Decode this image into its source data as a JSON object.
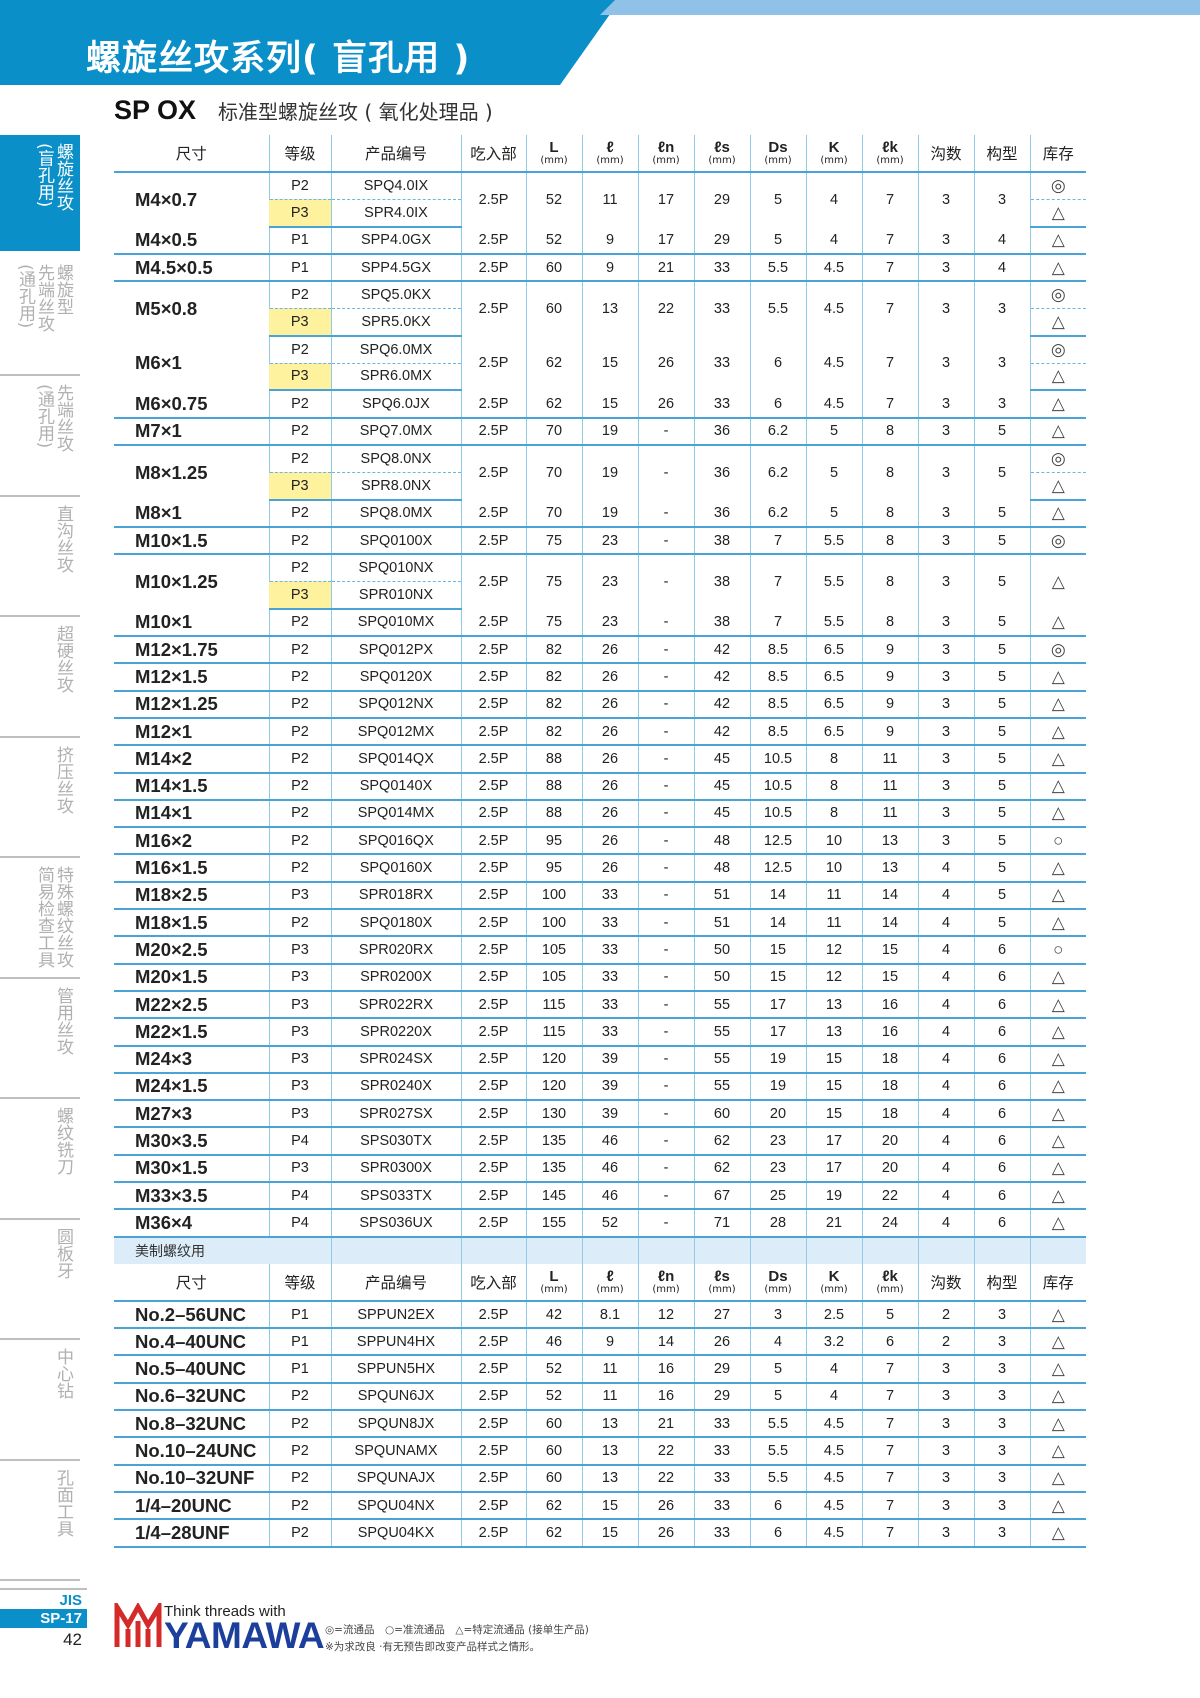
{
  "header": {
    "title": "螺旋丝攻系列( 盲孔用 )",
    "product_code": "SP OX",
    "product_desc": "标准型螺旋丝攻 ( 氧化处理品 )"
  },
  "colors": {
    "brand_blue": "#0a8fc9",
    "strip_blue": "#8fc2e6",
    "p3_highlight": "#fff29e",
    "section_bg": "#dcedf9",
    "logo_red": "#d42a2a",
    "logo_blue": "#1d3f9c"
  },
  "sidebar": {
    "items": [
      {
        "label": "螺旋丝攻\n(盲孔用)",
        "active": true
      },
      {
        "label": "螺旋型\n先端丝攻\n(通孔用)",
        "active": false
      },
      {
        "label": "先端丝攻\n(通孔用)",
        "active": false
      },
      {
        "label": "直沟丝攻",
        "active": false
      },
      {
        "label": "超硬丝攻",
        "active": false
      },
      {
        "label": "挤压丝攻",
        "active": false
      },
      {
        "label": "特殊螺纹丝攻\n简易检查工具",
        "active": false
      },
      {
        "label": "管用丝攻",
        "active": false
      },
      {
        "label": "螺纹铣刀",
        "active": false
      },
      {
        "label": "圆板牙",
        "active": false
      },
      {
        "label": "中心钻",
        "active": false
      },
      {
        "label": "孔面工具",
        "active": false
      }
    ]
  },
  "table": {
    "columns": [
      {
        "label": "尺寸"
      },
      {
        "label": "等级"
      },
      {
        "label": "产品编号"
      },
      {
        "label": "吃入部"
      },
      {
        "label": "L",
        "unit": "(mm)"
      },
      {
        "label": "ℓ",
        "unit": "(mm)"
      },
      {
        "label": "ℓn",
        "unit": "(mm)"
      },
      {
        "label": "ℓs",
        "unit": "(mm)"
      },
      {
        "label": "Ds",
        "unit": "(mm)"
      },
      {
        "label": "K",
        "unit": "(mm)"
      },
      {
        "label": "ℓk",
        "unit": "(mm)"
      },
      {
        "label": "沟数"
      },
      {
        "label": "构型"
      },
      {
        "label": "库存"
      }
    ],
    "metric_rows": [
      {
        "size": "M4×0.7",
        "variants": [
          {
            "grade": "P2",
            "code": "SPQ4.0IX",
            "stock": "◎"
          },
          {
            "grade": "P3",
            "code": "SPR4.0IX",
            "stock": "△"
          }
        ],
        "values": [
          "2.5P",
          "52",
          "11",
          "17",
          "29",
          "5",
          "4",
          "7",
          "3",
          "3"
        ]
      },
      {
        "size": "M4×0.5",
        "variants": [
          {
            "grade": "P1",
            "code": "SPP4.0GX",
            "stock": "△"
          }
        ],
        "values": [
          "2.5P",
          "52",
          "9",
          "17",
          "29",
          "5",
          "4",
          "7",
          "3",
          "4"
        ]
      },
      {
        "size": "M4.5×0.5",
        "variants": [
          {
            "grade": "P1",
            "code": "SPP4.5GX",
            "stock": "△"
          }
        ],
        "values": [
          "2.5P",
          "60",
          "9",
          "21",
          "33",
          "5.5",
          "4.5",
          "7",
          "3",
          "4"
        ]
      },
      {
        "size": "M5×0.8",
        "variants": [
          {
            "grade": "P2",
            "code": "SPQ5.0KX",
            "stock": "◎"
          },
          {
            "grade": "P3",
            "code": "SPR5.0KX",
            "stock": "△"
          }
        ],
        "values": [
          "2.5P",
          "60",
          "13",
          "22",
          "33",
          "5.5",
          "4.5",
          "7",
          "3",
          "3"
        ]
      },
      {
        "size": "M6×1",
        "variants": [
          {
            "grade": "P2",
            "code": "SPQ6.0MX",
            "stock": "◎"
          },
          {
            "grade": "P3",
            "code": "SPR6.0MX",
            "stock": "△"
          }
        ],
        "values": [
          "2.5P",
          "62",
          "15",
          "26",
          "33",
          "6",
          "4.5",
          "7",
          "3",
          "3"
        ]
      },
      {
        "size": "M6×0.75",
        "variants": [
          {
            "grade": "P2",
            "code": "SPQ6.0JX",
            "stock": "△"
          }
        ],
        "values": [
          "2.5P",
          "62",
          "15",
          "26",
          "33",
          "6",
          "4.5",
          "7",
          "3",
          "3"
        ]
      },
      {
        "size": "M7×1",
        "variants": [
          {
            "grade": "P2",
            "code": "SPQ7.0MX",
            "stock": "△"
          }
        ],
        "values": [
          "2.5P",
          "70",
          "19",
          "-",
          "36",
          "6.2",
          "5",
          "8",
          "3",
          "5"
        ]
      },
      {
        "size": "M8×1.25",
        "variants": [
          {
            "grade": "P2",
            "code": "SPQ8.0NX",
            "stock": "◎"
          },
          {
            "grade": "P3",
            "code": "SPR8.0NX",
            "stock": "△"
          }
        ],
        "values": [
          "2.5P",
          "70",
          "19",
          "-",
          "36",
          "6.2",
          "5",
          "8",
          "3",
          "5"
        ]
      },
      {
        "size": "M8×1",
        "variants": [
          {
            "grade": "P2",
            "code": "SPQ8.0MX",
            "stock": "△"
          }
        ],
        "values": [
          "2.5P",
          "70",
          "19",
          "-",
          "36",
          "6.2",
          "5",
          "8",
          "3",
          "5"
        ]
      },
      {
        "size": "M10×1.5",
        "variants": [
          {
            "grade": "P2",
            "code": "SPQ0100X",
            "stock": "◎"
          }
        ],
        "values": [
          "2.5P",
          "75",
          "23",
          "-",
          "38",
          "7",
          "5.5",
          "8",
          "3",
          "5"
        ]
      },
      {
        "size": "M10×1.25",
        "variants": [
          {
            "grade": "P2",
            "code": "SPQ010NX",
            "stock": "△"
          },
          {
            "grade": "P3",
            "code": "SPR010NX",
            "stock": ""
          }
        ],
        "values": [
          "2.5P",
          "75",
          "23",
          "-",
          "38",
          "7",
          "5.5",
          "8",
          "3",
          "5"
        ]
      },
      {
        "size": "M10×1",
        "variants": [
          {
            "grade": "P2",
            "code": "SPQ010MX",
            "stock": "△"
          }
        ],
        "values": [
          "2.5P",
          "75",
          "23",
          "-",
          "38",
          "7",
          "5.5",
          "8",
          "3",
          "5"
        ]
      },
      {
        "size": "M12×1.75",
        "variants": [
          {
            "grade": "P2",
            "code": "SPQ012PX",
            "stock": "◎"
          }
        ],
        "values": [
          "2.5P",
          "82",
          "26",
          "-",
          "42",
          "8.5",
          "6.5",
          "9",
          "3",
          "5"
        ]
      },
      {
        "size": "M12×1.5",
        "variants": [
          {
            "grade": "P2",
            "code": "SPQ0120X",
            "stock": "△"
          }
        ],
        "values": [
          "2.5P",
          "82",
          "26",
          "-",
          "42",
          "8.5",
          "6.5",
          "9",
          "3",
          "5"
        ]
      },
      {
        "size": "M12×1.25",
        "variants": [
          {
            "grade": "P2",
            "code": "SPQ012NX",
            "stock": "△"
          }
        ],
        "values": [
          "2.5P",
          "82",
          "26",
          "-",
          "42",
          "8.5",
          "6.5",
          "9",
          "3",
          "5"
        ]
      },
      {
        "size": "M12×1",
        "variants": [
          {
            "grade": "P2",
            "code": "SPQ012MX",
            "stock": "△"
          }
        ],
        "values": [
          "2.5P",
          "82",
          "26",
          "-",
          "42",
          "8.5",
          "6.5",
          "9",
          "3",
          "5"
        ]
      },
      {
        "size": "M14×2",
        "variants": [
          {
            "grade": "P2",
            "code": "SPQ014QX",
            "stock": "△"
          }
        ],
        "values": [
          "2.5P",
          "88",
          "26",
          "-",
          "45",
          "10.5",
          "8",
          "11",
          "3",
          "5"
        ]
      },
      {
        "size": "M14×1.5",
        "variants": [
          {
            "grade": "P2",
            "code": "SPQ0140X",
            "stock": "△"
          }
        ],
        "values": [
          "2.5P",
          "88",
          "26",
          "-",
          "45",
          "10.5",
          "8",
          "11",
          "3",
          "5"
        ]
      },
      {
        "size": "M14×1",
        "variants": [
          {
            "grade": "P2",
            "code": "SPQ014MX",
            "stock": "△"
          }
        ],
        "values": [
          "2.5P",
          "88",
          "26",
          "-",
          "45",
          "10.5",
          "8",
          "11",
          "3",
          "5"
        ]
      },
      {
        "size": "M16×2",
        "variants": [
          {
            "grade": "P2",
            "code": "SPQ016QX",
            "stock": "○"
          }
        ],
        "values": [
          "2.5P",
          "95",
          "26",
          "-",
          "48",
          "12.5",
          "10",
          "13",
          "3",
          "5"
        ]
      },
      {
        "size": "M16×1.5",
        "variants": [
          {
            "grade": "P2",
            "code": "SPQ0160X",
            "stock": "△"
          }
        ],
        "values": [
          "2.5P",
          "95",
          "26",
          "-",
          "48",
          "12.5",
          "10",
          "13",
          "4",
          "5"
        ]
      },
      {
        "size": "M18×2.5",
        "variants": [
          {
            "grade": "P3",
            "code": "SPR018RX",
            "stock": "△"
          }
        ],
        "values": [
          "2.5P",
          "100",
          "33",
          "-",
          "51",
          "14",
          "11",
          "14",
          "4",
          "5"
        ]
      },
      {
        "size": "M18×1.5",
        "variants": [
          {
            "grade": "P2",
            "code": "SPQ0180X",
            "stock": "△"
          }
        ],
        "values": [
          "2.5P",
          "100",
          "33",
          "-",
          "51",
          "14",
          "11",
          "14",
          "4",
          "5"
        ]
      },
      {
        "size": "M20×2.5",
        "variants": [
          {
            "grade": "P3",
            "code": "SPR020RX",
            "stock": "○"
          }
        ],
        "values": [
          "2.5P",
          "105",
          "33",
          "-",
          "50",
          "15",
          "12",
          "15",
          "4",
          "6"
        ]
      },
      {
        "size": "M20×1.5",
        "variants": [
          {
            "grade": "P3",
            "code": "SPR0200X",
            "stock": "△"
          }
        ],
        "values": [
          "2.5P",
          "105",
          "33",
          "-",
          "50",
          "15",
          "12",
          "15",
          "4",
          "6"
        ]
      },
      {
        "size": "M22×2.5",
        "variants": [
          {
            "grade": "P3",
            "code": "SPR022RX",
            "stock": "△"
          }
        ],
        "values": [
          "2.5P",
          "115",
          "33",
          "-",
          "55",
          "17",
          "13",
          "16",
          "4",
          "6"
        ]
      },
      {
        "size": "M22×1.5",
        "variants": [
          {
            "grade": "P3",
            "code": "SPR0220X",
            "stock": "△"
          }
        ],
        "values": [
          "2.5P",
          "115",
          "33",
          "-",
          "55",
          "17",
          "13",
          "16",
          "4",
          "6"
        ]
      },
      {
        "size": "M24×3",
        "variants": [
          {
            "grade": "P3",
            "code": "SPR024SX",
            "stock": "△"
          }
        ],
        "values": [
          "2.5P",
          "120",
          "39",
          "-",
          "55",
          "19",
          "15",
          "18",
          "4",
          "6"
        ]
      },
      {
        "size": "M24×1.5",
        "variants": [
          {
            "grade": "P3",
            "code": "SPR0240X",
            "stock": "△"
          }
        ],
        "values": [
          "2.5P",
          "120",
          "39",
          "-",
          "55",
          "19",
          "15",
          "18",
          "4",
          "6"
        ]
      },
      {
        "size": "M27×3",
        "variants": [
          {
            "grade": "P3",
            "code": "SPR027SX",
            "stock": "△"
          }
        ],
        "values": [
          "2.5P",
          "130",
          "39",
          "-",
          "60",
          "20",
          "15",
          "18",
          "4",
          "6"
        ]
      },
      {
        "size": "M30×3.5",
        "variants": [
          {
            "grade": "P4",
            "code": "SPS030TX",
            "stock": "△"
          }
        ],
        "values": [
          "2.5P",
          "135",
          "46",
          "-",
          "62",
          "23",
          "17",
          "20",
          "4",
          "6"
        ]
      },
      {
        "size": "M30×1.5",
        "variants": [
          {
            "grade": "P3",
            "code": "SPR0300X",
            "stock": "△"
          }
        ],
        "values": [
          "2.5P",
          "135",
          "46",
          "-",
          "62",
          "23",
          "17",
          "20",
          "4",
          "6"
        ]
      },
      {
        "size": "M33×3.5",
        "variants": [
          {
            "grade": "P4",
            "code": "SPS033TX",
            "stock": "△"
          }
        ],
        "values": [
          "2.5P",
          "145",
          "46",
          "-",
          "67",
          "25",
          "19",
          "22",
          "4",
          "6"
        ]
      },
      {
        "size": "M36×4",
        "variants": [
          {
            "grade": "P4",
            "code": "SPS036UX",
            "stock": "△"
          }
        ],
        "values": [
          "2.5P",
          "155",
          "52",
          "-",
          "71",
          "28",
          "21",
          "24",
          "4",
          "6"
        ]
      }
    ],
    "section_label": "美制螺纹用",
    "unified_rows": [
      {
        "size": "No.2–56UNC",
        "variants": [
          {
            "grade": "P1",
            "code": "SPPUN2EX",
            "stock": "△"
          }
        ],
        "values": [
          "2.5P",
          "42",
          "8.1",
          "12",
          "27",
          "3",
          "2.5",
          "5",
          "2",
          "3"
        ]
      },
      {
        "size": "No.4–40UNC",
        "variants": [
          {
            "grade": "P1",
            "code": "SPPUN4HX",
            "stock": "△"
          }
        ],
        "values": [
          "2.5P",
          "46",
          "9",
          "14",
          "26",
          "4",
          "3.2",
          "6",
          "2",
          "3"
        ]
      },
      {
        "size": "No.5–40UNC",
        "variants": [
          {
            "grade": "P1",
            "code": "SPPUN5HX",
            "stock": "△"
          }
        ],
        "values": [
          "2.5P",
          "52",
          "11",
          "16",
          "29",
          "5",
          "4",
          "7",
          "3",
          "3"
        ]
      },
      {
        "size": "No.6–32UNC",
        "variants": [
          {
            "grade": "P2",
            "code": "SPQUN6JX",
            "stock": "△"
          }
        ],
        "values": [
          "2.5P",
          "52",
          "11",
          "16",
          "29",
          "5",
          "4",
          "7",
          "3",
          "3"
        ]
      },
      {
        "size": "No.8–32UNC",
        "variants": [
          {
            "grade": "P2",
            "code": "SPQUN8JX",
            "stock": "△"
          }
        ],
        "values": [
          "2.5P",
          "60",
          "13",
          "21",
          "33",
          "5.5",
          "4.5",
          "7",
          "3",
          "3"
        ]
      },
      {
        "size": "No.10–24UNC",
        "variants": [
          {
            "grade": "P2",
            "code": "SPQUNAMX",
            "stock": "△"
          }
        ],
        "values": [
          "2.5P",
          "60",
          "13",
          "22",
          "33",
          "5.5",
          "4.5",
          "7",
          "3",
          "3"
        ]
      },
      {
        "size": "No.10–32UNF",
        "variants": [
          {
            "grade": "P2",
            "code": "SPQUNAJX",
            "stock": "△"
          }
        ],
        "values": [
          "2.5P",
          "60",
          "13",
          "22",
          "33",
          "5.5",
          "4.5",
          "7",
          "3",
          "3"
        ]
      },
      {
        "size": "1/4–20UNC",
        "variants": [
          {
            "grade": "P2",
            "code": "SPQU04NX",
            "stock": "△"
          }
        ],
        "values": [
          "2.5P",
          "62",
          "15",
          "26",
          "33",
          "6",
          "4.5",
          "7",
          "3",
          "3"
        ]
      },
      {
        "size": "1/4–28UNF",
        "variants": [
          {
            "grade": "P2",
            "code": "SPQU04KX",
            "stock": "△"
          }
        ],
        "values": [
          "2.5P",
          "62",
          "15",
          "26",
          "33",
          "6",
          "4.5",
          "7",
          "3",
          "3"
        ]
      }
    ]
  },
  "footer": {
    "standard": "JIS",
    "series": "SP-17",
    "page_number": "42",
    "logo_tagline": "Think threads with",
    "logo_word": "YAMAWA",
    "legend": "◎=流通品　○=准流通品　△=特定流通品 (接单生产品)",
    "note": "※为求改良 ·有无预告即改变产品样式之情形。"
  }
}
